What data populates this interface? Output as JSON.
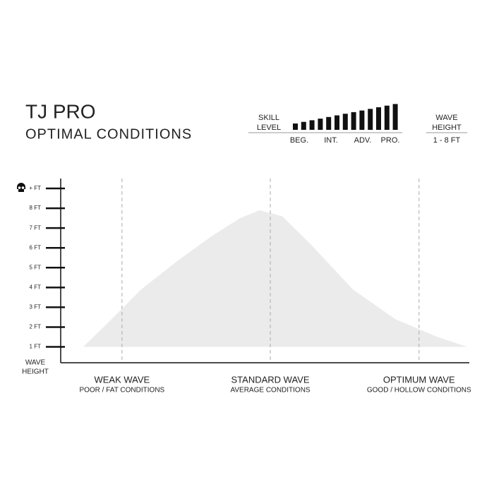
{
  "chart_data": {
    "type": "area",
    "title": "TJ PRO",
    "subtitle": "OPTIMAL CONDITIONS",
    "x": [
      5.5,
      11,
      19.7,
      28.3,
      37,
      43.9,
      48.7,
      54.2,
      61.1,
      71.5,
      81.9,
      92.2,
      99.5
    ],
    "values": [
      1.0,
      2.1,
      3.9,
      5.3,
      6.6,
      7.5,
      7.9,
      7.6,
      6.2,
      3.9,
      2.4,
      1.5,
      1.0
    ],
    "color": "#ebebeb",
    "xlim": [
      0,
      100
    ],
    "xticks": [
      {
        "value": 15,
        "label": "WEAK WAVE"
      },
      {
        "value": 51.3,
        "label": "STANDARD WAVE"
      },
      {
        "value": 87.7,
        "label": "OPTIMUM WAVE"
      }
    ],
    "xtick_sublabels": [
      "POOR / FAT CONDITIONS",
      "AVERAGE CONDITIONS",
      "GOOD / HOLLOW CONDITIONS"
    ],
    "ylim": [
      0.2,
      9.5
    ],
    "yticks": [
      {
        "value": 1,
        "label": "1 FT"
      },
      {
        "value": 2,
        "label": "2 FT"
      },
      {
        "value": 3,
        "label": "3 FT"
      },
      {
        "value": 4,
        "label": "4 FT"
      },
      {
        "value": 5,
        "label": "5 FT"
      },
      {
        "value": 6,
        "label": "6 FT"
      },
      {
        "value": 7,
        "label": "7 FT"
      },
      {
        "value": 8,
        "label": "8 FT"
      },
      {
        "value": 9,
        "label": "+ FT"
      }
    ],
    "ylabel": [
      "WAVE",
      "HEIGHT"
    ]
  },
  "skill": {
    "label": [
      "SKILL",
      "LEVEL"
    ],
    "levels": [
      "BEG.",
      "INT.",
      "ADV.",
      "PRO."
    ]
  },
  "wave_height": {
    "label": [
      "WAVE",
      "HEIGHT"
    ],
    "range": "1 - 8 FT"
  }
}
